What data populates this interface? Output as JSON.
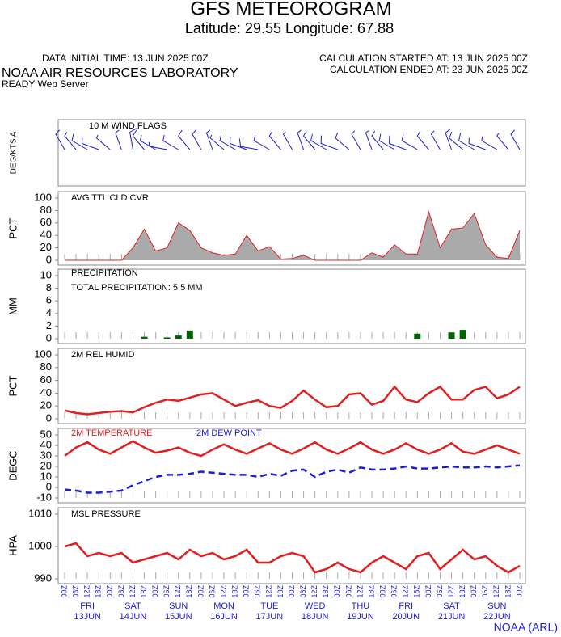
{
  "header": {
    "title": "GFS METEOROGRAM",
    "subtitle": "Latitude: 29.55 Longitude:  67.88",
    "initial": "DATA INITIAL TIME: 13 JUN 2025 00Z",
    "started": "CALCULATION STARTED AT: 13 JUN 2025 00Z",
    "ended": "CALCULATION ENDED AT: 23 JUN 2025 00Z",
    "org": "NOAA AIR RESOURCES LABORATORY",
    "server": "READY Web Server",
    "footer": "NOAA (ARL)"
  },
  "x_axis": {
    "xlim": [
      0,
      240
    ],
    "hours": [
      0,
      6,
      12,
      18,
      24,
      30,
      36,
      42,
      48,
      54,
      60,
      66,
      72,
      78,
      84,
      90,
      96,
      102,
      108,
      114,
      120,
      126,
      132,
      138,
      144,
      150,
      156,
      162,
      168,
      174,
      180,
      186,
      192,
      198,
      204,
      210,
      216,
      222,
      228,
      234,
      240
    ],
    "hour_labels": [
      "00Z",
      "06Z",
      "12Z",
      "18Z",
      "00Z",
      "06Z",
      "12Z",
      "18Z",
      "00Z",
      "06Z",
      "12Z",
      "18Z",
      "00Z",
      "06Z",
      "12Z",
      "18Z",
      "00Z",
      "06Z",
      "12Z",
      "18Z",
      "00Z",
      "06Z",
      "12Z",
      "18Z",
      "00Z",
      "06Z",
      "12Z",
      "18Z",
      "00Z",
      "06Z",
      "12Z",
      "18Z",
      "00Z",
      "06Z",
      "12Z",
      "18Z",
      "00Z",
      "06Z",
      "12Z",
      "18Z",
      "00Z"
    ],
    "days": [
      "FRI",
      "SAT",
      "SUN",
      "MON",
      "TUE",
      "WED",
      "THU",
      "FRI",
      "SAT",
      "SUN"
    ],
    "dates": [
      "13JUN",
      "14JUN",
      "15JUN",
      "16JUN",
      "17JUN",
      "18JUN",
      "19JUN",
      "20JUN",
      "21JUN",
      "22JUN"
    ]
  },
  "chart_data": [
    {
      "type": "wind",
      "title": "10 M  WIND FLAGS",
      "ylabel": "DEG/KTS A",
      "color": "#1c1cd0",
      "direction": [
        330,
        320,
        300,
        290,
        310,
        340,
        350,
        320,
        300,
        280,
        300,
        320,
        330,
        340,
        310,
        300,
        290,
        280,
        300,
        320,
        330,
        340,
        320,
        300,
        290,
        310,
        330,
        340,
        320,
        300,
        290,
        300,
        320,
        330,
        340,
        310,
        300,
        290,
        300,
        320,
        330
      ],
      "speed": [
        10,
        8,
        12,
        10,
        6,
        8,
        14,
        12,
        10,
        8,
        10,
        12,
        10,
        8,
        6,
        10,
        12,
        14,
        10,
        8,
        6,
        8,
        10,
        12,
        14,
        10,
        8,
        6,
        10,
        12,
        14,
        12,
        10,
        8,
        10,
        12,
        14,
        10,
        8,
        6,
        10
      ]
    },
    {
      "type": "area",
      "title": "AVG TTL CLD CVR",
      "ylabel": "PCT",
      "color": "#e02020",
      "fill": "#aaaaaa",
      "ylim": [
        0,
        100
      ],
      "yticks": [
        0,
        20,
        40,
        60,
        80,
        100
      ],
      "values": [
        0,
        0,
        0,
        0,
        0,
        0,
        20,
        50,
        15,
        20,
        60,
        48,
        20,
        12,
        8,
        10,
        40,
        15,
        22,
        2,
        3,
        8,
        0,
        0,
        0,
        0,
        0,
        12,
        5,
        25,
        10,
        10,
        78,
        20,
        50,
        52,
        75,
        25,
        5,
        3,
        48
      ]
    },
    {
      "type": "bar",
      "title": "PRECIPITATION",
      "annotation": "TOTAL PRECIPITATION:   5.5 MM",
      "ylabel": "MM",
      "color": "#006400",
      "ylim": [
        0,
        10
      ],
      "yticks": [
        0,
        2,
        4,
        6,
        8,
        10
      ],
      "values": [
        0,
        0,
        0,
        0,
        0,
        0,
        0,
        0.3,
        0,
        0.2,
        0.5,
        1.3,
        0,
        0,
        0,
        0,
        0,
        0,
        0,
        0,
        0,
        0,
        0,
        0,
        0,
        0,
        0,
        0,
        0,
        0,
        0,
        0.8,
        0,
        0,
        1.0,
        1.4,
        0,
        0,
        0,
        0,
        0
      ]
    },
    {
      "type": "line",
      "title": "2M REL HUMID",
      "ylabel": "PCT",
      "ylim": [
        0,
        100
      ],
      "yticks": [
        0,
        20,
        40,
        60,
        80,
        100
      ],
      "series": [
        {
          "name": null,
          "color": "#e02020",
          "values": [
            13,
            9,
            7,
            9,
            11,
            12,
            10,
            18,
            25,
            30,
            28,
            33,
            38,
            40,
            30,
            20,
            25,
            29,
            20,
            17,
            28,
            44,
            30,
            18,
            20,
            38,
            40,
            22,
            28,
            50,
            30,
            26,
            40,
            50,
            30,
            30,
            45,
            50,
            32,
            38,
            50
          ]
        }
      ]
    },
    {
      "type": "line",
      "title": null,
      "ylabel": "DEGC",
      "ylim": [
        -10,
        50
      ],
      "yticks": [
        -10,
        0,
        10,
        20,
        30,
        40,
        50
      ],
      "series": [
        {
          "name": "2M TEMPERATURE",
          "color": "#e02020",
          "values": [
            30,
            38,
            43,
            36,
            32,
            38,
            44,
            38,
            33,
            35,
            38,
            33,
            30,
            36,
            41,
            36,
            32,
            37,
            42,
            36,
            32,
            37,
            43,
            36,
            32,
            37,
            43,
            36,
            32,
            36,
            42,
            36,
            32,
            36,
            42,
            34,
            32,
            36,
            40,
            36,
            32
          ]
        },
        {
          "name": "2M   DEW POINT",
          "color": "#1c1cd0",
          "dashed": true,
          "values": [
            -2,
            -3,
            -5,
            -5,
            -4,
            -3,
            2,
            6,
            10,
            12,
            12,
            13,
            15,
            14,
            13,
            12,
            12,
            10,
            13,
            11,
            16,
            17,
            10,
            15,
            17,
            14,
            19,
            17,
            17,
            18,
            20,
            18,
            18,
            19,
            20,
            19,
            19,
            20,
            19,
            20,
            21
          ]
        }
      ]
    },
    {
      "type": "line",
      "title": "MSL PRESSURE",
      "ylabel": "HPA",
      "ylim": [
        990,
        1010
      ],
      "yticks": [
        990,
        1000,
        1010
      ],
      "series": [
        {
          "name": null,
          "color": "#e02020",
          "values": [
            1000,
            1001,
            997,
            998,
            997,
            998,
            995,
            996,
            997,
            998,
            996,
            999,
            997,
            998,
            996,
            997,
            999,
            995,
            995,
            997,
            998,
            997,
            992,
            993,
            995,
            993,
            992,
            995,
            997,
            995,
            993,
            997,
            998,
            993,
            996,
            999,
            996,
            997,
            994,
            992,
            994
          ]
        }
      ]
    }
  ]
}
